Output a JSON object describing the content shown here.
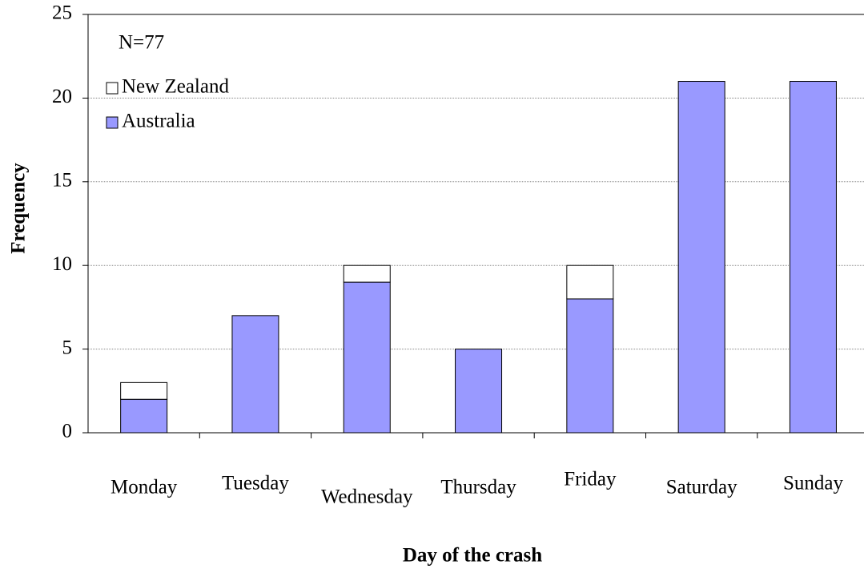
{
  "chart_data": {
    "type": "bar",
    "stacked": true,
    "x_label": "Day of the crash",
    "y_label": "Frequency",
    "annotation": "N=77",
    "categories": [
      "Monday",
      "Tuesday",
      "Wednesday",
      "Thursday",
      "Friday",
      "Saturday",
      "Sunday"
    ],
    "series": [
      {
        "name": "Australia",
        "color": "#9999ff",
        "values": [
          2,
          7,
          9,
          5,
          8,
          21,
          21
        ]
      },
      {
        "name": "New Zealand",
        "color": "#ffffff",
        "values": [
          1,
          0,
          1,
          0,
          2,
          0,
          0
        ]
      }
    ],
    "ylim": [
      0,
      25
    ],
    "yticks": [
      0,
      5,
      10,
      15,
      20,
      25
    ],
    "grid": true,
    "legend": "upper left"
  }
}
